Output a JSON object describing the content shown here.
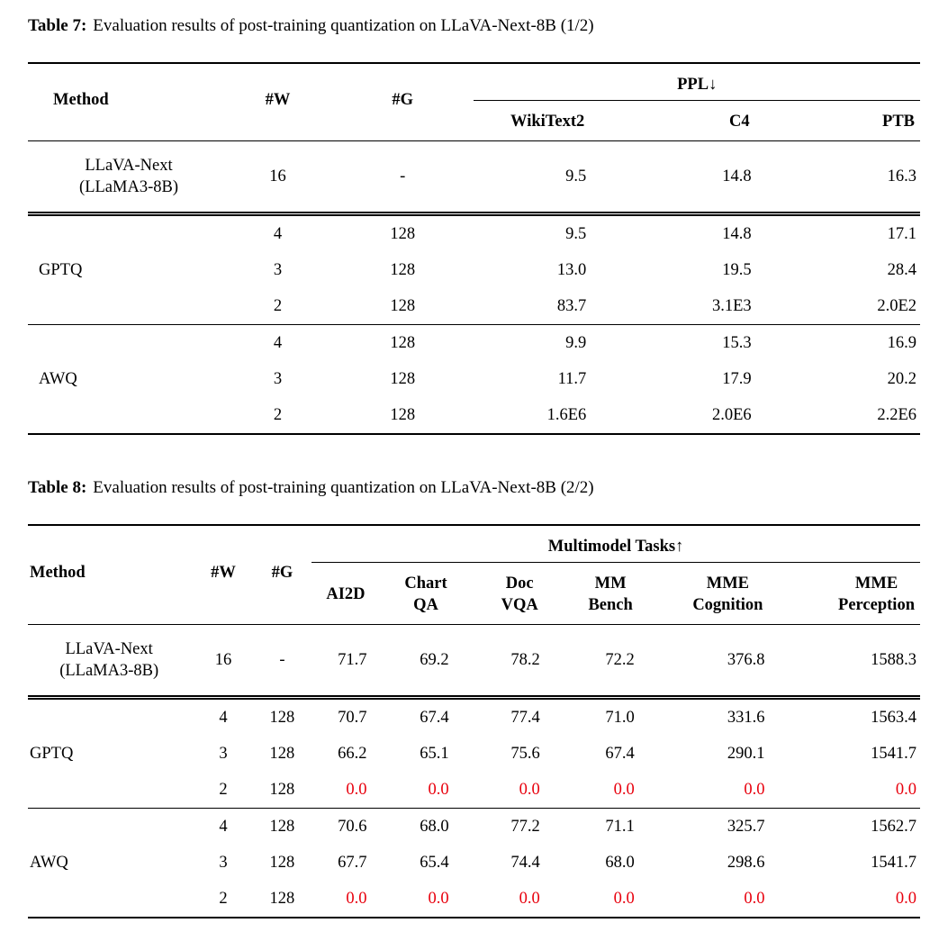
{
  "page": {
    "background": "#ffffff"
  },
  "colors": {
    "text": "#000000",
    "alert_red": "#e8000d"
  },
  "table7": {
    "caption": {
      "label": "Table 7:",
      "text": "Evaluation results of post-training quantization on LLaVA-Next-8B (1/2)"
    },
    "headers": {
      "method": "Method",
      "weight_bits": "#W",
      "group_size": "#G",
      "group": "PPL↓",
      "subcolumns": [
        {
          "lines": [
            "WikiText2"
          ]
        },
        {
          "lines": [
            "C4"
          ]
        },
        {
          "lines": [
            "PTB"
          ]
        }
      ]
    },
    "sections": [
      {
        "baseline": true,
        "method_lines": [
          "LLaVA-Next",
          "(LLaMA3-8B)"
        ],
        "rows": [
          {
            "w": "16",
            "g": "-",
            "red": false,
            "values": [
              "9.5",
              "14.8",
              "16.3"
            ]
          }
        ]
      },
      {
        "baseline": false,
        "method_lines": [
          "GPTQ"
        ],
        "rows": [
          {
            "w": "4",
            "g": "128",
            "red": false,
            "values": [
              "9.5",
              "14.8",
              "17.1"
            ]
          },
          {
            "w": "3",
            "g": "128",
            "red": false,
            "values": [
              "13.0",
              "19.5",
              "28.4"
            ]
          },
          {
            "w": "2",
            "g": "128",
            "red": false,
            "values": [
              "83.7",
              "3.1E3",
              "2.0E2"
            ]
          }
        ]
      },
      {
        "baseline": false,
        "method_lines": [
          "AWQ"
        ],
        "rows": [
          {
            "w": "4",
            "g": "128",
            "red": false,
            "values": [
              "9.9",
              "15.3",
              "16.9"
            ]
          },
          {
            "w": "3",
            "g": "128",
            "red": false,
            "values": [
              "11.7",
              "17.9",
              "20.2"
            ]
          },
          {
            "w": "2",
            "g": "128",
            "red": false,
            "values": [
              "1.6E6",
              "2.0E6",
              "2.2E6"
            ]
          }
        ]
      }
    ]
  },
  "table8": {
    "caption": {
      "label": "Table 8:",
      "text": "Evaluation results of post-training quantization on LLaVA-Next-8B (2/2)"
    },
    "headers": {
      "method": "Method",
      "weight_bits": "#W",
      "group_size": "#G",
      "group": "Multimodel Tasks↑",
      "subcolumns": [
        {
          "lines": [
            "AI2D"
          ]
        },
        {
          "lines": [
            "Chart",
            "QA"
          ]
        },
        {
          "lines": [
            "Doc",
            "VQA"
          ]
        },
        {
          "lines": [
            "MM",
            "Bench"
          ]
        },
        {
          "lines": [
            "MME",
            "Cognition"
          ]
        },
        {
          "lines": [
            "MME",
            "Perception"
          ]
        }
      ]
    },
    "sections": [
      {
        "baseline": true,
        "method_lines": [
          "LLaVA-Next",
          "(LLaMA3-8B)"
        ],
        "rows": [
          {
            "w": "16",
            "g": "-",
            "red": false,
            "values": [
              "71.7",
              "69.2",
              "78.2",
              "72.2",
              "376.8",
              "1588.3"
            ]
          }
        ]
      },
      {
        "baseline": false,
        "method_lines": [
          "GPTQ"
        ],
        "rows": [
          {
            "w": "4",
            "g": "128",
            "red": false,
            "values": [
              "70.7",
              "67.4",
              "77.4",
              "71.0",
              "331.6",
              "1563.4"
            ]
          },
          {
            "w": "3",
            "g": "128",
            "red": false,
            "values": [
              "66.2",
              "65.1",
              "75.6",
              "67.4",
              "290.1",
              "1541.7"
            ]
          },
          {
            "w": "2",
            "g": "128",
            "red": true,
            "values": [
              "0.0",
              "0.0",
              "0.0",
              "0.0",
              "0.0",
              "0.0"
            ]
          }
        ]
      },
      {
        "baseline": false,
        "method_lines": [
          "AWQ"
        ],
        "rows": [
          {
            "w": "4",
            "g": "128",
            "red": false,
            "values": [
              "70.6",
              "68.0",
              "77.2",
              "71.1",
              "325.7",
              "1562.7"
            ]
          },
          {
            "w": "3",
            "g": "128",
            "red": false,
            "values": [
              "67.7",
              "65.4",
              "74.4",
              "68.0",
              "298.6",
              "1541.7"
            ]
          },
          {
            "w": "2",
            "g": "128",
            "red": true,
            "values": [
              "0.0",
              "0.0",
              "0.0",
              "0.0",
              "0.0",
              "0.0"
            ]
          }
        ]
      }
    ]
  }
}
